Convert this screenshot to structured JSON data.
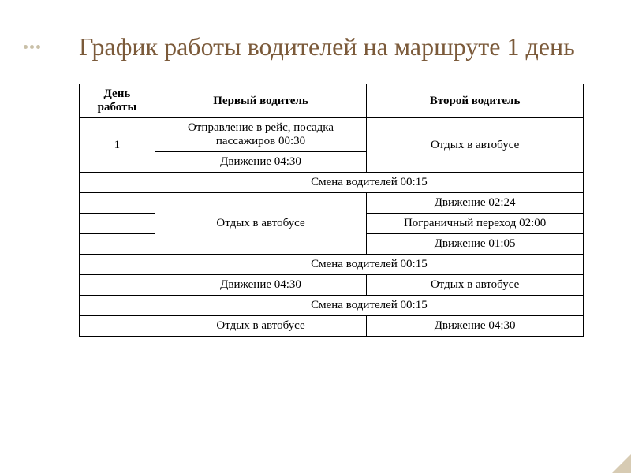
{
  "title_color": "#7b5a3a",
  "accent_dot_color": "#c9c0a8",
  "title": "График работы водителей на маршруте  1 день",
  "headers": {
    "day": "День работы",
    "driver1": "Первый водитель",
    "driver2": "Второй водитель"
  },
  "day_value": "1",
  "rows": {
    "r1_d1": "Отправление в рейс, посадка пассажиров  00:30",
    "r1_d2": "Отдых в автобусе",
    "r2_d1": "Движение 04:30",
    "shift1": "Смена водителей 00:15",
    "r4_d1": "Отдых в автобусе",
    "r4_d2a": "Движение 02:24",
    "r4_d2b": "Пограничный переход 02:00",
    "r4_d2c": "Движение 01:05",
    "shift2": "Смена водителей 00:15",
    "r6_d1": "Движение 04:30",
    "r6_d2": "Отдых в автобусе",
    "shift3": "Смена водителей 00:15",
    "r8_d1": "Отдых в автобусе",
    "r8_d2": "Движение 04:30"
  }
}
